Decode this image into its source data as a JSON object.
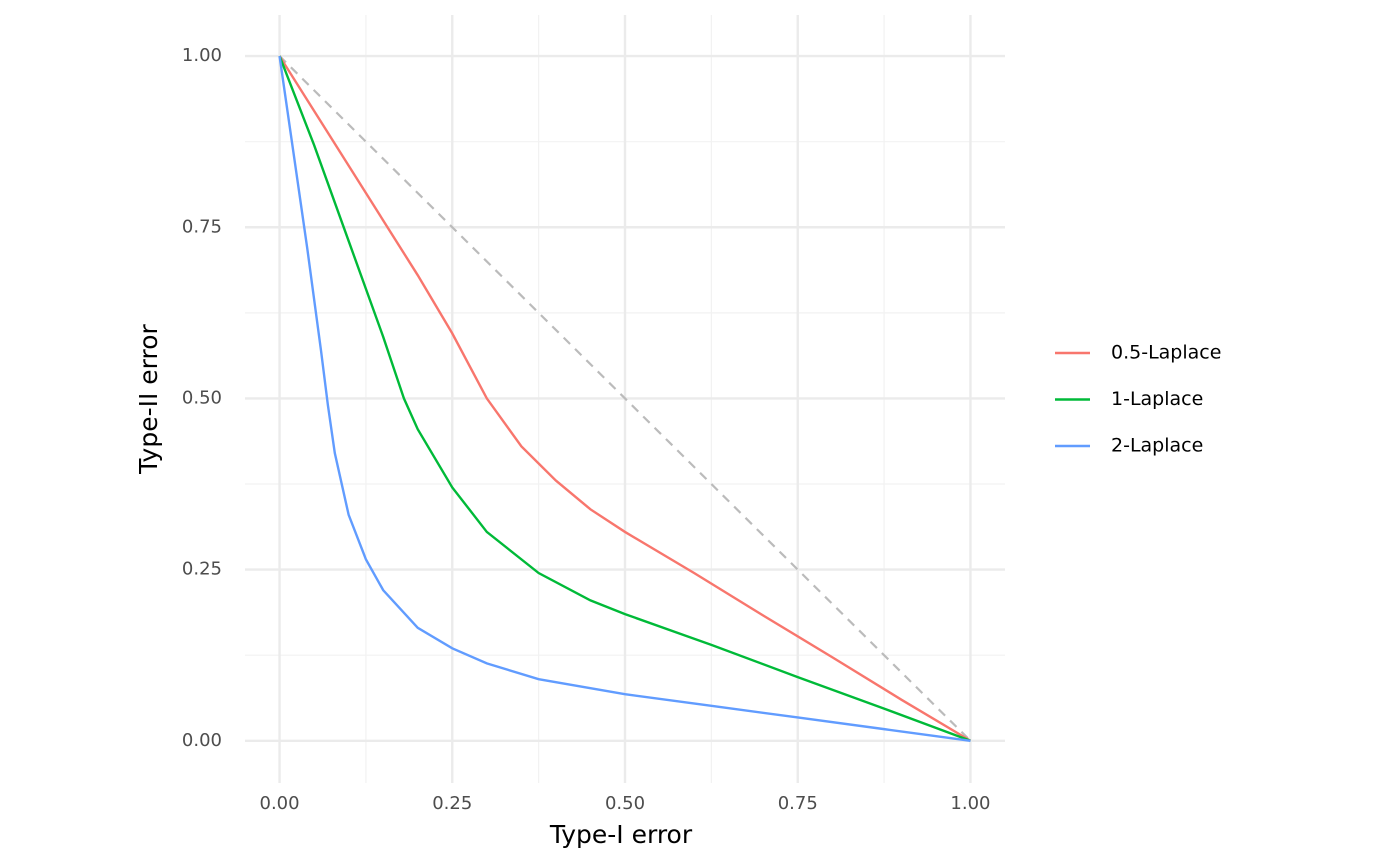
{
  "chart_data": {
    "type": "line",
    "x_label": "Type-I error",
    "y_label": "Type-II error",
    "xlim": [
      -0.05,
      1.05
    ],
    "ylim": [
      -0.05,
      1.06
    ],
    "xticks": [
      {
        "value": 0,
        "label": "0.00"
      },
      {
        "value": 0.25,
        "label": "0.25"
      },
      {
        "value": 0.5,
        "label": "0.50"
      },
      {
        "value": 0.75,
        "label": "0.75"
      },
      {
        "value": 1,
        "label": "1.00"
      }
    ],
    "yticks": [
      {
        "value": 0,
        "label": "0.00"
      },
      {
        "value": 0.25,
        "label": "0.25"
      },
      {
        "value": 0.5,
        "label": "0.50"
      },
      {
        "value": 0.75,
        "label": "0.75"
      },
      {
        "value": 1,
        "label": "1.00"
      }
    ],
    "xminor": [
      0.125,
      0.375,
      0.625,
      0.875
    ],
    "yminor": [
      0.125,
      0.375,
      0.625,
      0.875
    ],
    "grid": true,
    "legend": "right",
    "reference_line": {
      "x": [
        0,
        1
      ],
      "y": [
        1,
        0
      ],
      "color": "#bbbbbb",
      "dashed": true
    },
    "series": [
      {
        "name": "0.5-Laplace",
        "color": "#F8766D",
        "x": [
          0,
          0.1,
          0.2,
          0.25,
          0.3,
          0.35,
          0.4,
          0.45,
          0.5,
          0.6,
          0.7,
          0.8,
          0.9,
          1
        ],
        "values": [
          1,
          0.84,
          0.68,
          0.595,
          0.5,
          0.43,
          0.38,
          0.338,
          0.305,
          0.245,
          0.183,
          0.122,
          0.06,
          0
        ]
      },
      {
        "name": "1-Laplace",
        "color": "#00BA38",
        "x": [
          0,
          0.05,
          0.1,
          0.15,
          0.18,
          0.2,
          0.25,
          0.3,
          0.375,
          0.45,
          0.5,
          0.625,
          0.75,
          0.875,
          1
        ],
        "values": [
          1,
          0.87,
          0.73,
          0.59,
          0.5,
          0.455,
          0.37,
          0.305,
          0.245,
          0.205,
          0.185,
          0.14,
          0.093,
          0.047,
          0
        ]
      },
      {
        "name": "2-Laplace",
        "color": "#619CFF",
        "x": [
          0,
          0.02,
          0.04,
          0.06,
          0.07,
          0.08,
          0.1,
          0.125,
          0.15,
          0.2,
          0.25,
          0.3,
          0.375,
          0.5,
          0.625,
          0.75,
          0.875,
          1
        ],
        "values": [
          1,
          0.86,
          0.72,
          0.57,
          0.49,
          0.42,
          0.33,
          0.265,
          0.22,
          0.165,
          0.135,
          0.113,
          0.09,
          0.068,
          0.051,
          0.034,
          0.017,
          0
        ]
      }
    ]
  }
}
